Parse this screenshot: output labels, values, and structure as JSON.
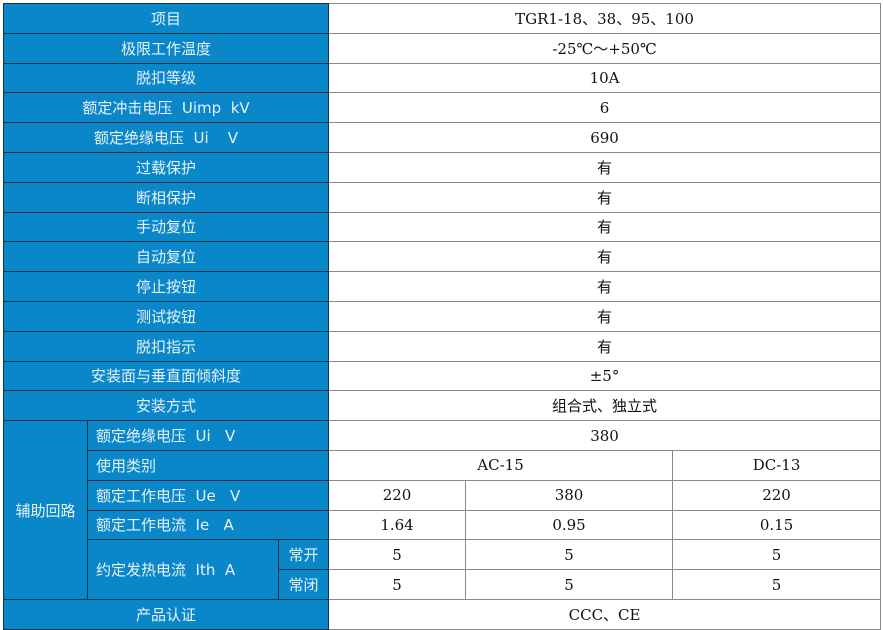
{
  "rows": [
    {
      "label": "项目",
      "value": "TGR1-18、38、95、100"
    },
    {
      "label": "极限工作温度",
      "value": "-25℃～+50℃"
    },
    {
      "label": "脱扣等级",
      "value": "10A"
    },
    {
      "label": "额定冲击电压  Uimp  kV",
      "value": "6"
    },
    {
      "label": "额定绝缘电压  Ui    V",
      "value": "690"
    },
    {
      "label": "过载保护",
      "value": "有"
    },
    {
      "label": "断相保护",
      "value": "有"
    },
    {
      "label": "手动复位",
      "value": "有"
    },
    {
      "label": "自动复位",
      "value": "有"
    },
    {
      "label": "停止按钮",
      "value": "有"
    },
    {
      "label": "测试按钮",
      "value": "有"
    },
    {
      "label": "脱扣指示",
      "value": "有"
    },
    {
      "label": "安装面与垂直面倾斜度",
      "value": "±5°"
    },
    {
      "label": "安装方式",
      "value": "组合式、独立式"
    }
  ],
  "aux": {
    "group": "辅助回路",
    "insulation": {
      "label": "额定绝缘电压  Ui   V",
      "value": "380"
    },
    "category": {
      "label": "使用类别",
      "ac": "AC-15",
      "dc": "DC-13"
    },
    "voltage": {
      "label": "额定工作电压  Ue   V",
      "values": [
        "220",
        "380",
        "220"
      ]
    },
    "current": {
      "label": "额定工作电流  Ie   A",
      "values": [
        "1.64",
        "0.95",
        "0.15"
      ]
    },
    "thermal": {
      "label": "约定发热电流  Ith  A",
      "no": "常开",
      "nc": "常闭",
      "no_values": [
        "5",
        "5",
        "5"
      ],
      "nc_values": [
        "5",
        "5",
        "5"
      ]
    }
  },
  "cert": {
    "label": "产品认证",
    "value": "CCC、CE"
  }
}
